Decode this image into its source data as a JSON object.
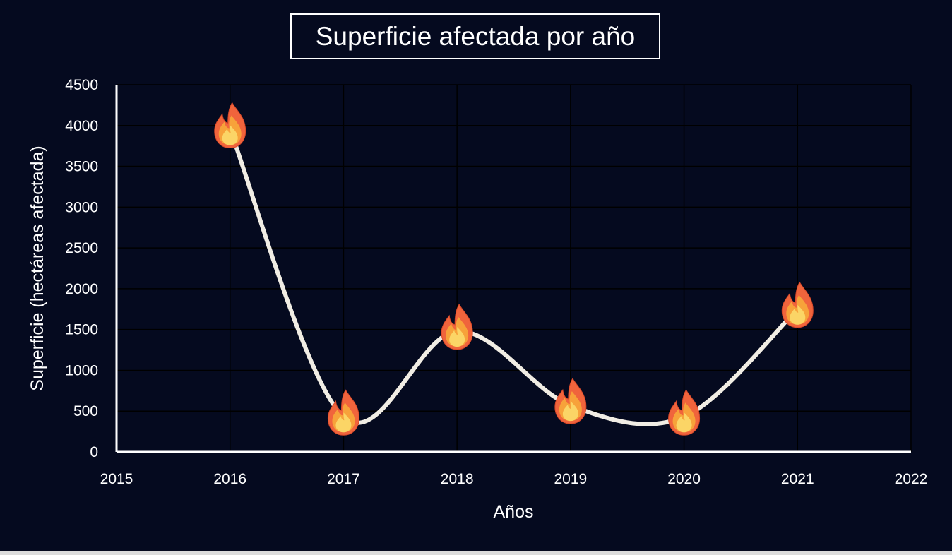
{
  "chart_data": {
    "type": "line",
    "title": "Superficie afectada por año",
    "xlabel": "Años",
    "ylabel": "Superficie (hectáreas afectada)",
    "x": [
      2016,
      2017,
      2018,
      2019,
      2020,
      2021
    ],
    "series": [
      {
        "values": [
          3950,
          430,
          1480,
          570,
          430,
          1750
        ]
      }
    ],
    "xlim": [
      2015,
      2022
    ],
    "ylim": [
      0,
      4500
    ],
    "xticks": [
      2015,
      2016,
      2017,
      2018,
      2019,
      2020,
      2021,
      2022
    ],
    "yticks": [
      0,
      500,
      1000,
      1500,
      2000,
      2500,
      3000,
      3500,
      4000,
      4500
    ],
    "grid": true,
    "smooth": true,
    "marker": "fire-icon",
    "colors": {
      "background": "#050a1f",
      "line": "#f1ede4",
      "grid": "#000000",
      "axis": "#ffffff",
      "text": "#ffffff",
      "flame_outer": "#f0643c",
      "flame_mid": "#f7a23a",
      "flame_inner": "#fbd566"
    }
  }
}
